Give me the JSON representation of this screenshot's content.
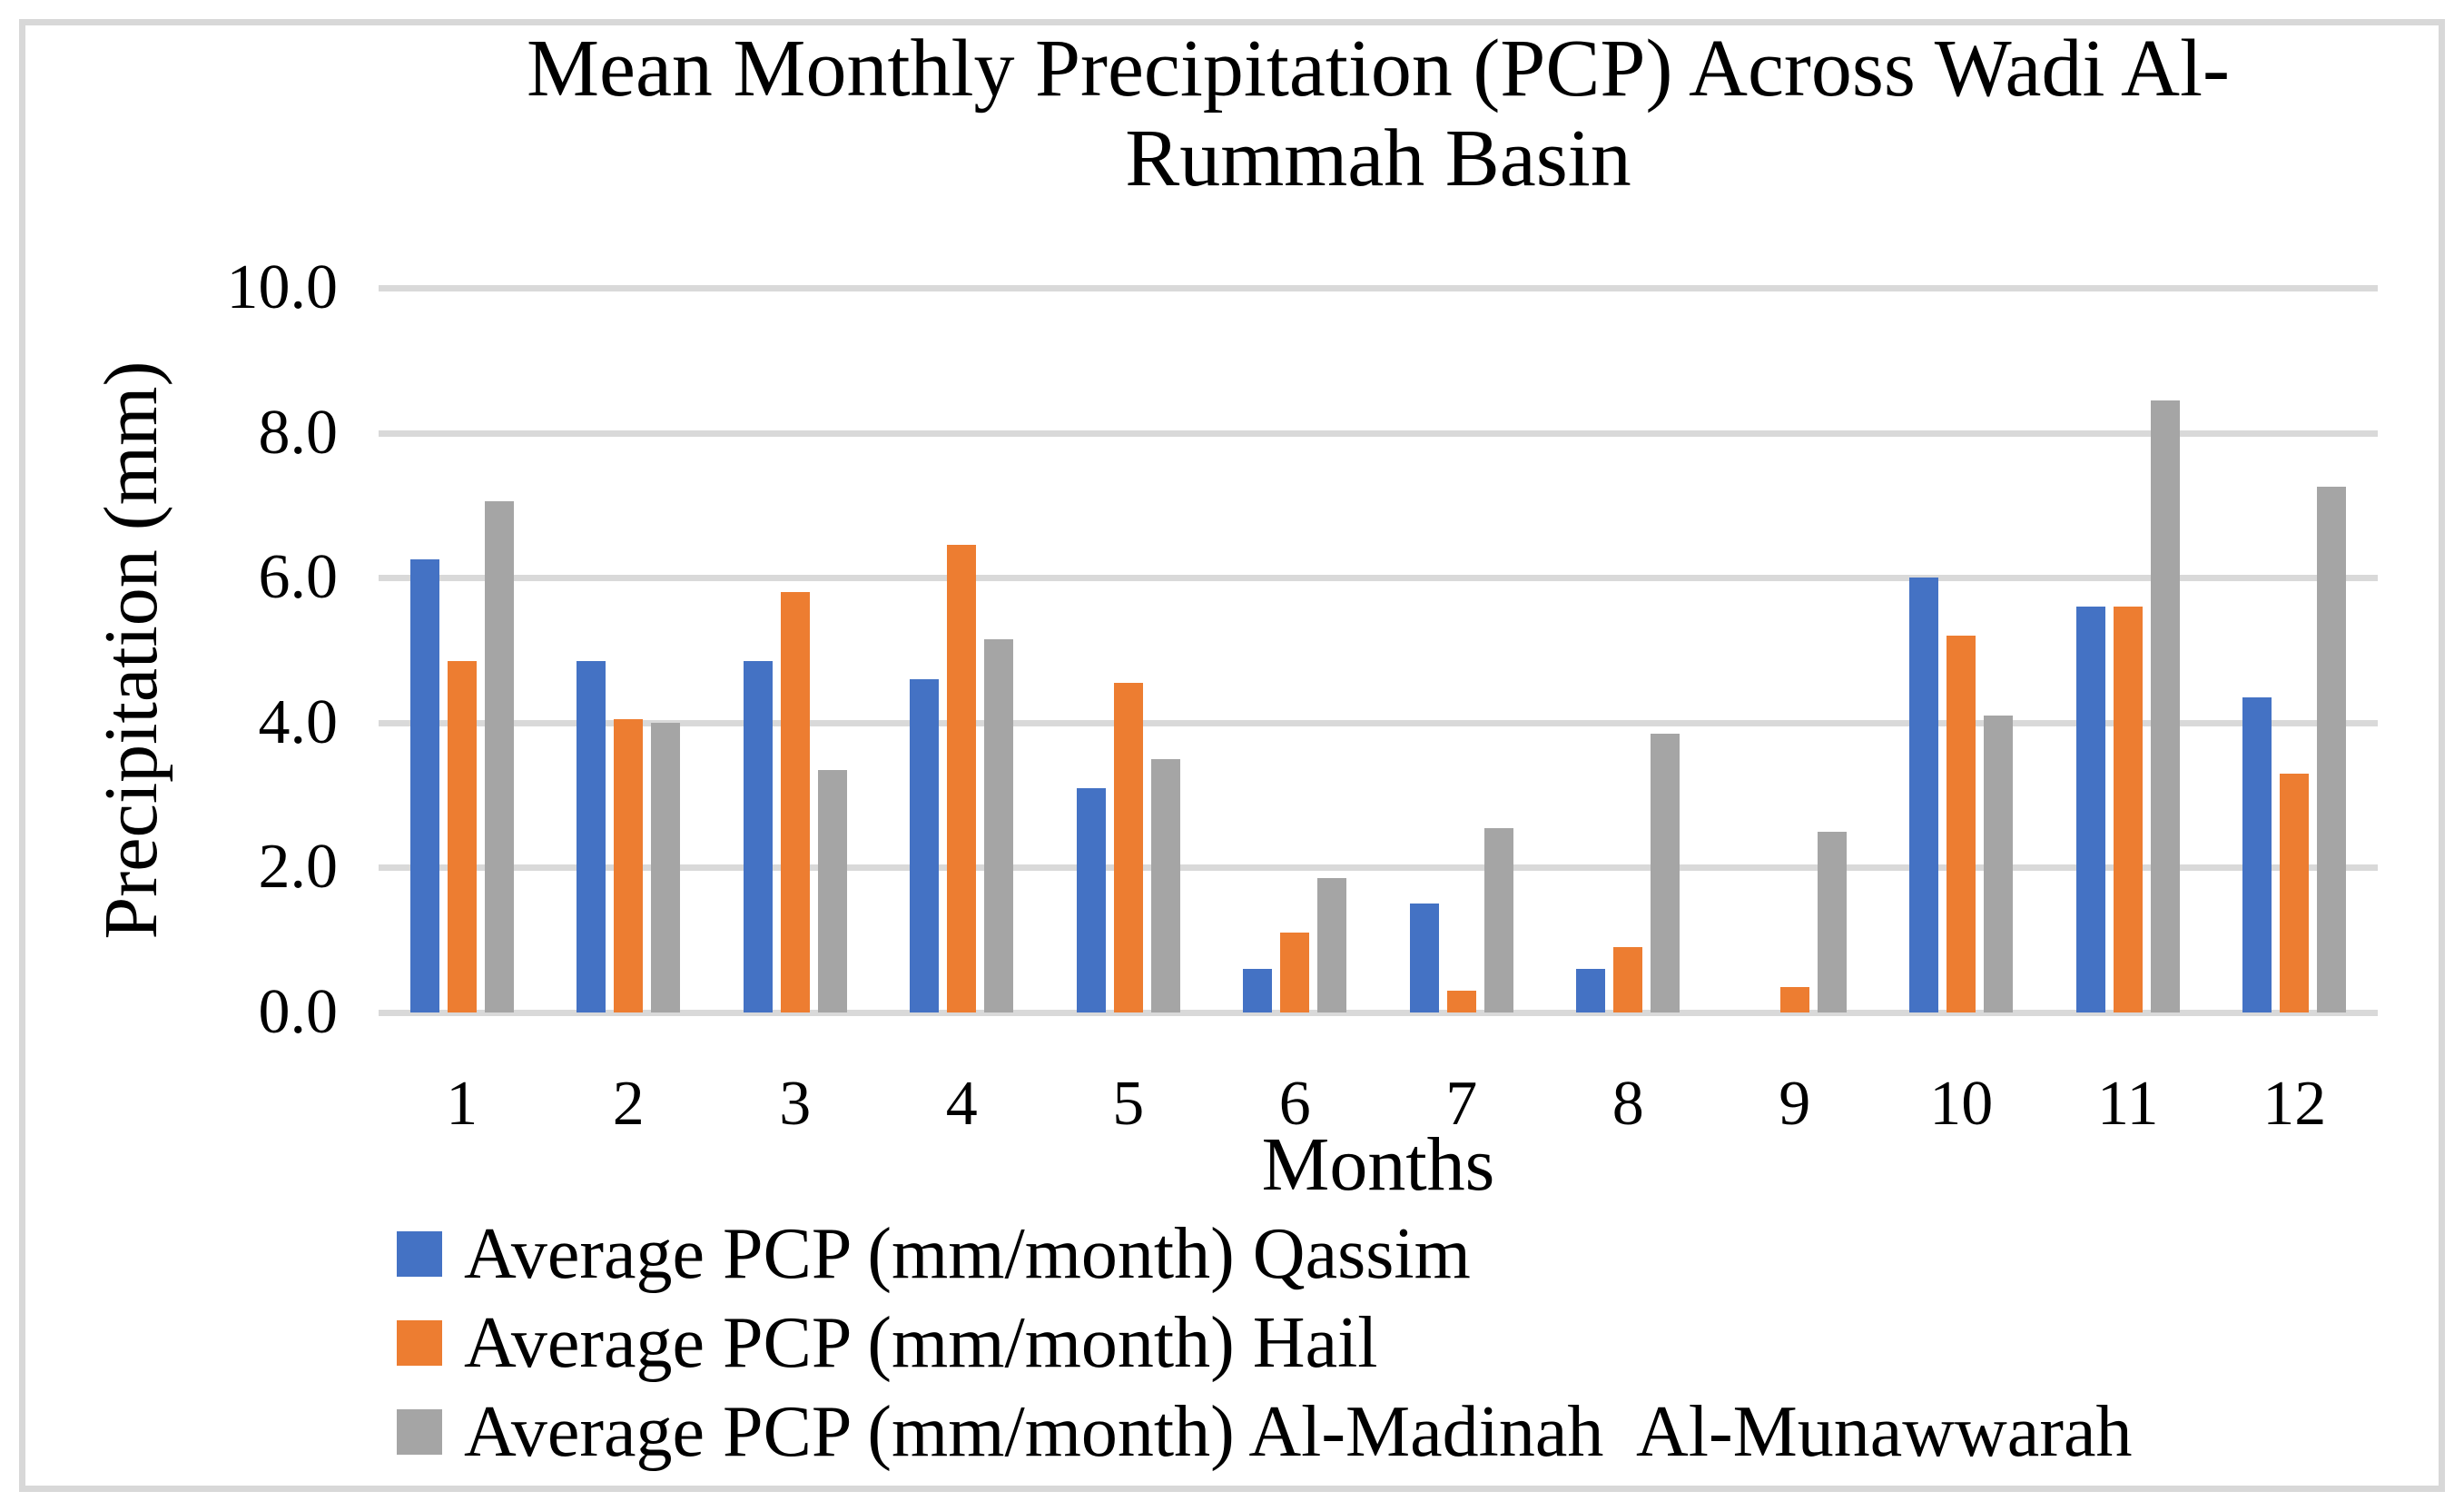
{
  "chart_data": {
    "type": "bar",
    "title": "Mean Monthly Precipitation (PCP) Across Wadi Al-Rummah Basin",
    "title_lines": [
      "Mean Monthly Precipitation (PCP) Across Wadi Al-",
      "Rummah Basin"
    ],
    "xlabel": "Months",
    "ylabel": "Precipitation (mm)",
    "ylim": [
      0,
      10
    ],
    "grid": true,
    "legend_position": "bottom-left",
    "background": "#FFFFFF",
    "gridline_color": "#D9D9D9",
    "text_color": "#000000",
    "y_ticks": [
      {
        "label": "10.0",
        "value": 10
      },
      {
        "label": "8.0",
        "value": 8
      },
      {
        "label": "6.0",
        "value": 6
      },
      {
        "label": "4.0",
        "value": 4
      },
      {
        "label": "2.0",
        "value": 2
      },
      {
        "label": "0.0",
        "value": 0
      }
    ],
    "categories": [
      "1",
      "2",
      "3",
      "4",
      "5",
      "6",
      "7",
      "8",
      "9",
      "10",
      "11",
      "12"
    ],
    "series": [
      {
        "name": "Average PCP (mm/month) Qassim",
        "color": "#4472C4",
        "values": [
          6.25,
          4.85,
          4.85,
          4.6,
          3.1,
          0.6,
          1.5,
          0.6,
          0,
          6.0,
          5.6,
          4.35
        ]
      },
      {
        "name": "Average PCP (mm/month) Hail",
        "color": "#ED7D31",
        "values": [
          4.85,
          4.05,
          5.8,
          6.45,
          4.55,
          1.1,
          0.3,
          0.9,
          0.35,
          5.2,
          5.6,
          3.3
        ]
      },
      {
        "name": "Average PCP (mm/month) Al-Madinah  Al-Munawwarah",
        "color": "#A5A5A5",
        "values": [
          7.05,
          4.0,
          3.35,
          5.15,
          3.5,
          1.85,
          2.55,
          3.85,
          2.5,
          4.1,
          8.45,
          7.25
        ]
      }
    ]
  }
}
